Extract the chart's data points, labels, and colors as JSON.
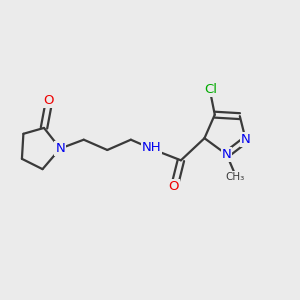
{
  "background_color": "#ebebeb",
  "bond_color": "#3a3a3a",
  "bond_width": 1.6,
  "atom_colors": {
    "N": "#0000ee",
    "O": "#ee0000",
    "Cl": "#00aa00",
    "C": "#3a3a3a",
    "H": "#888888"
  },
  "font_size": 9.5,
  "fig_size": [
    3.0,
    3.0
  ],
  "dpi": 100
}
